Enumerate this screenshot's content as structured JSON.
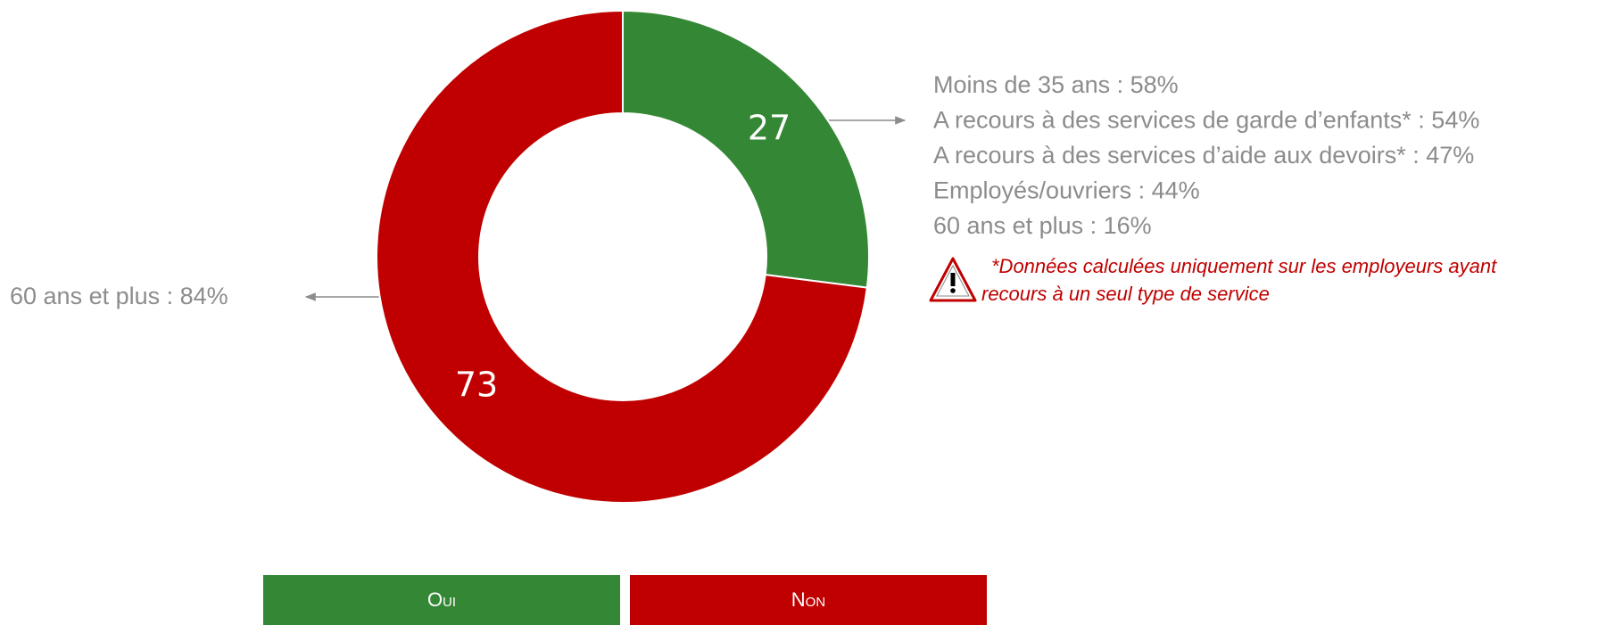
{
  "chart_data": {
    "type": "donut",
    "categories": [
      "Oui",
      "Non"
    ],
    "values": [
      27,
      73
    ],
    "colors": [
      "#348734",
      "#c00000"
    ],
    "legend": "bottom",
    "annotations_right": [
      "Moins de 35 ans : 58%",
      "A recours à des services de garde d’enfants* : 54%",
      "A recours à des services d’aide aux devoirs* : 47%",
      "Employés/ouvriers : 44%",
      "60 ans et plus : 16%"
    ],
    "annotation_left": "60 ans et plus : 84%",
    "note": [
      "*Données calculées uniquement sur les employeurs ayant",
      "recours à un seul type de service"
    ]
  }
}
